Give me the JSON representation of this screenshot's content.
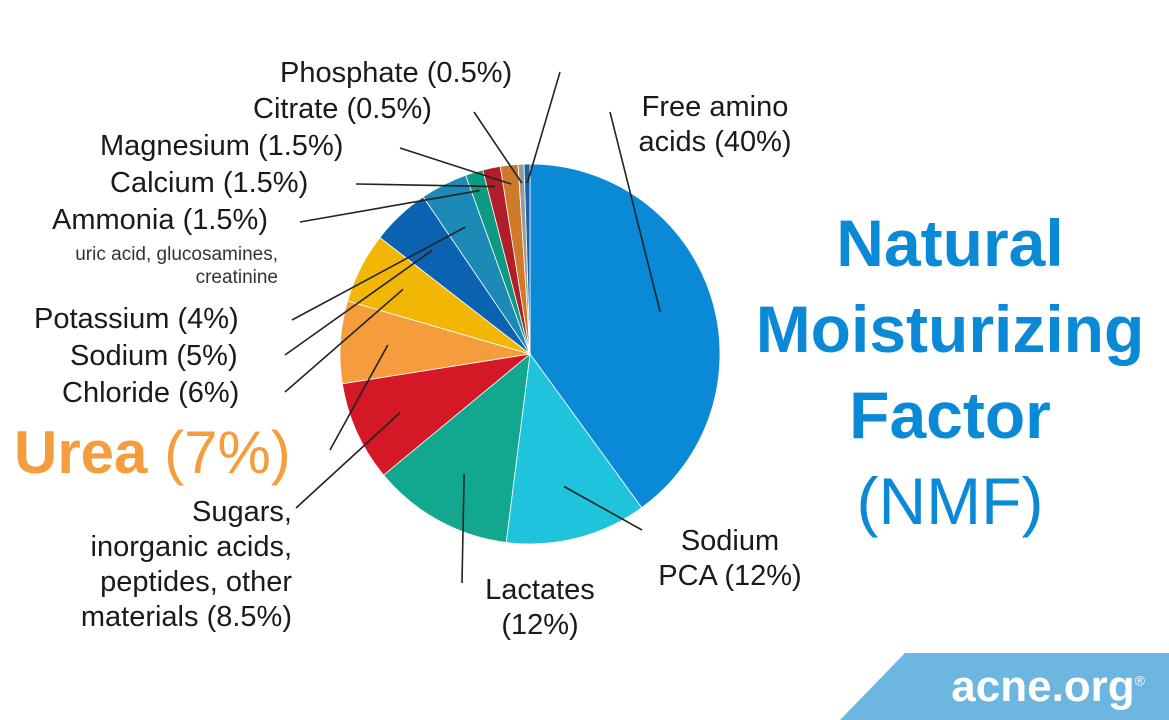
{
  "title": {
    "line1": "Natural",
    "line2": "Moisturizing",
    "line3": "Factor",
    "line4": "(NMF)"
  },
  "brand": {
    "name": "acne.org",
    "mark": "®"
  },
  "colors": {
    "title": "#0a8ad6",
    "urea_label": "#f59c3d",
    "brand_bg": "#6cb6e0"
  },
  "chart_data": {
    "type": "pie",
    "start": "12 o'clock",
    "direction": "clockwise",
    "slices": [
      {
        "name": "Free amino acids",
        "label": "Free amino",
        "label2": "acids",
        "pct": "(40%)",
        "value": 40,
        "color": "#0a8ad6"
      },
      {
        "name": "Sodium PCA",
        "label": "Sodium",
        "label2": "PCA",
        "pct": "(12%)",
        "value": 12,
        "color": "#1fc3dc"
      },
      {
        "name": "Lactates",
        "label": "Lactates",
        "pct": "(12%)",
        "value": 12,
        "color": "#12a890"
      },
      {
        "name": "Sugars, inorganic acids, peptides, other materials",
        "label": "Sugars,",
        "label2": "inorganic acids,",
        "label3": "peptides, other",
        "label4": "materials",
        "pct": "(8.5%)",
        "value": 8.5,
        "color": "#d41826"
      },
      {
        "name": "Urea",
        "label": "Urea",
        "pct": "(7%)",
        "value": 7,
        "color": "#f59c3d"
      },
      {
        "name": "Chloride",
        "label": "Chloride",
        "pct": "(6%)",
        "value": 6,
        "color": "#f2b705"
      },
      {
        "name": "Sodium",
        "label": "Sodium",
        "pct": "(5%)",
        "value": 5,
        "color": "#0a62b0"
      },
      {
        "name": "Potassium",
        "label": "Potassium",
        "pct": "(4%)",
        "value": 4,
        "color": "#1c89b7"
      },
      {
        "name": "Ammonia, uric acid, glucosamines, creatinine",
        "label": "Ammonia",
        "pct": "(1.5%)",
        "value": 1.5,
        "color": "#0d9a82",
        "note1": "uric acid, glucosamines,",
        "note2": "creatinine"
      },
      {
        "name": "Calcium",
        "label": "Calcium",
        "pct": "(1.5%)",
        "value": 1.5,
        "color": "#b01e2a"
      },
      {
        "name": "Magnesium",
        "label": "Magnesium",
        "pct": "(1.5%)",
        "value": 1.5,
        "color": "#cf7a2a"
      },
      {
        "name": "Citrate",
        "label": "Citrate",
        "pct": "(0.5%)",
        "value": 0.5,
        "color": "#9a9a9a"
      },
      {
        "name": "Phosphate",
        "label": "Phosphate",
        "pct": "(0.5%)",
        "value": 0.5,
        "color": "#1a63a8"
      }
    ]
  }
}
